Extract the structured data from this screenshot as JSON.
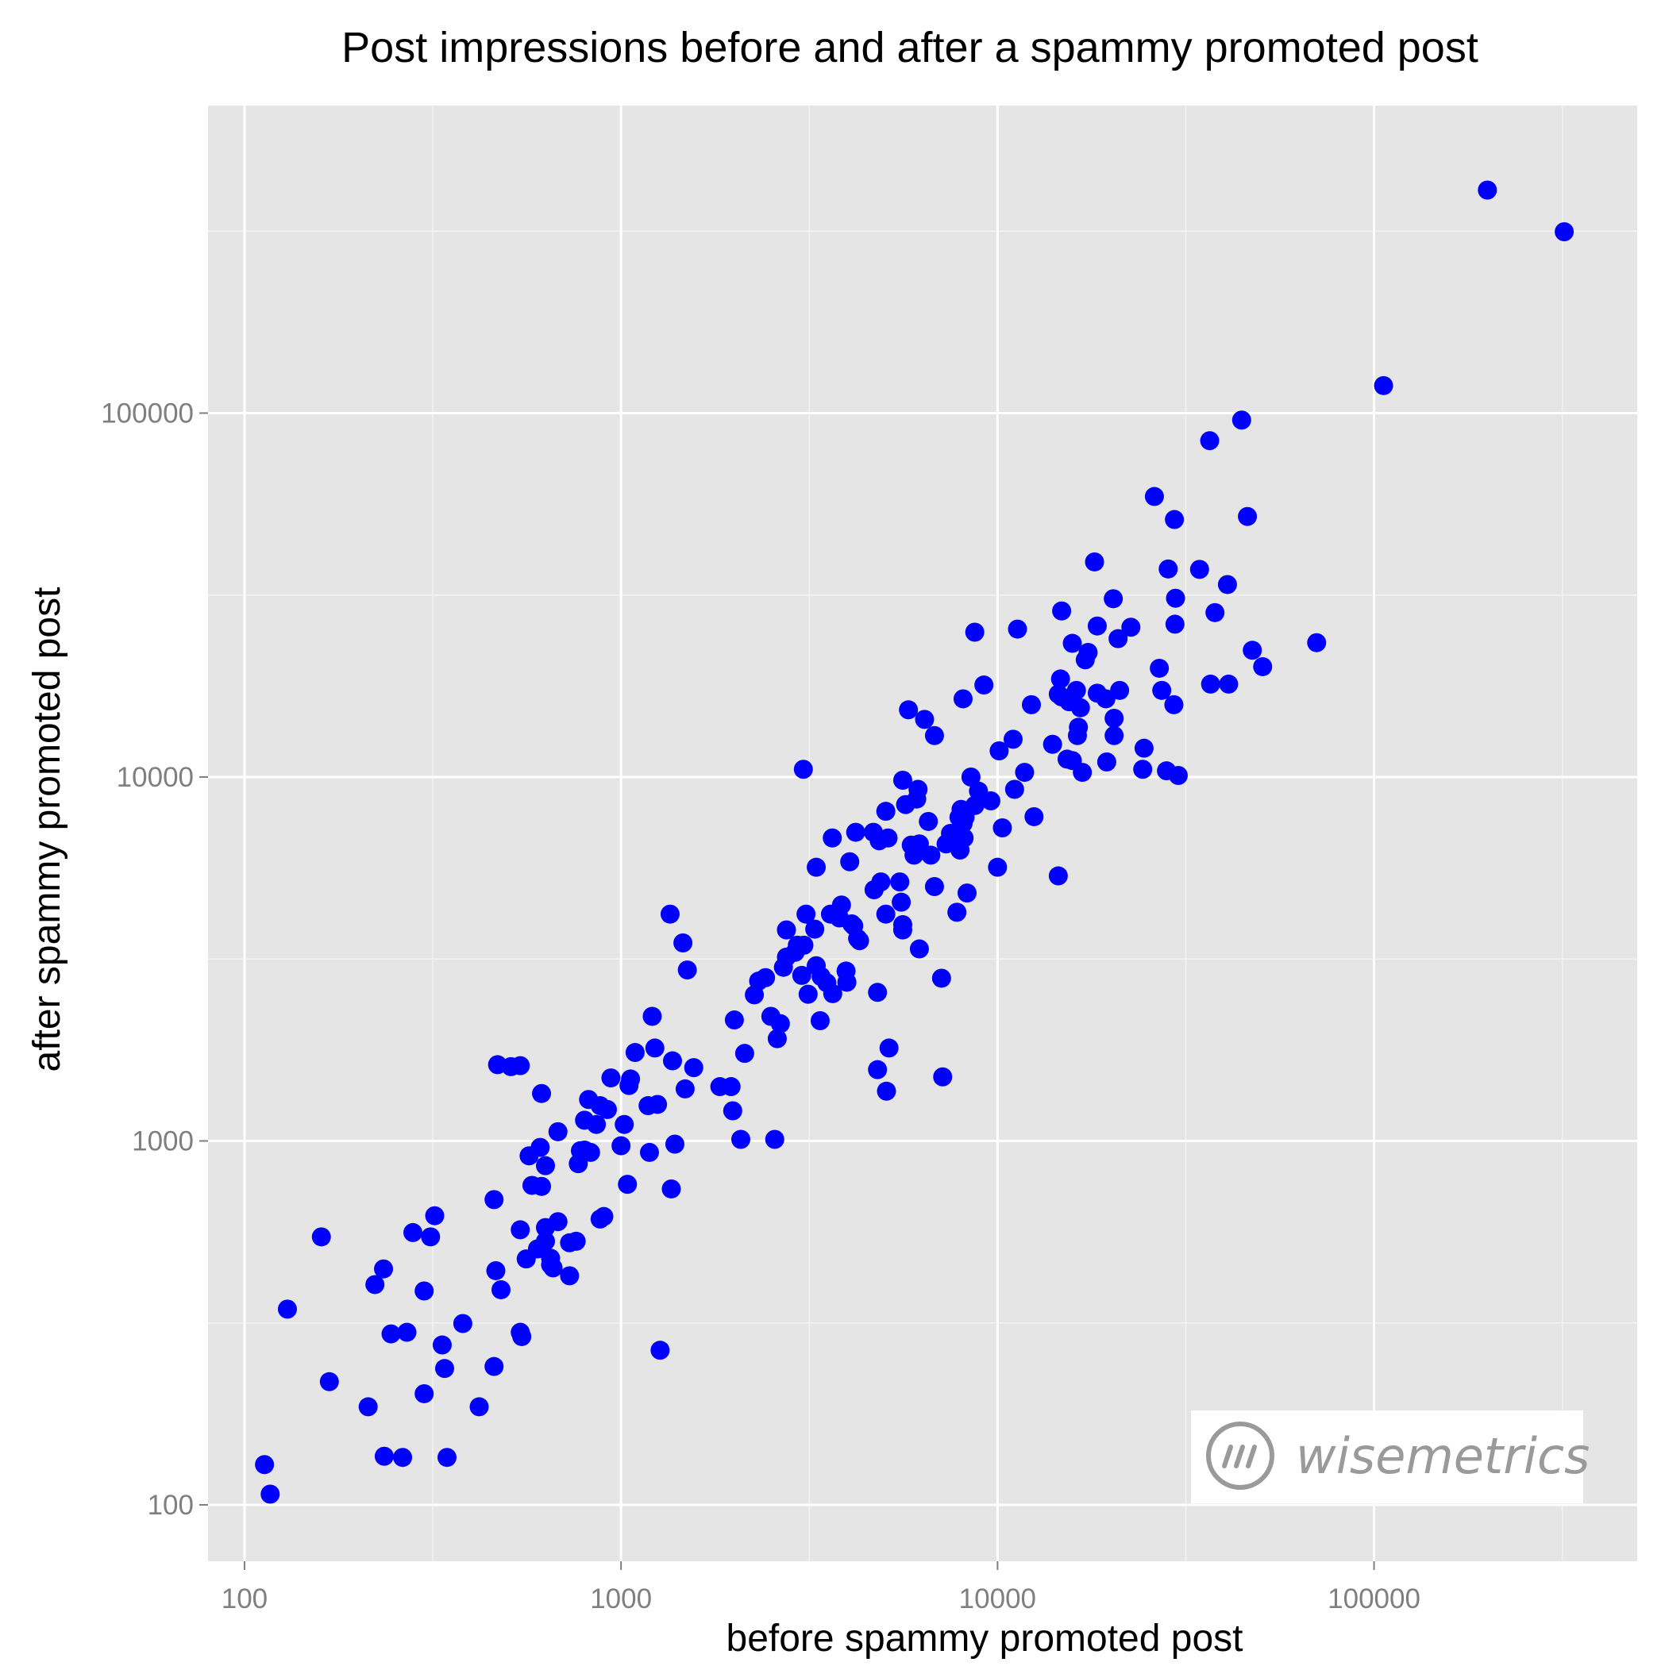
{
  "chart_data": {
    "type": "scatter",
    "title": "Post impressions before and after a spammy promoted post",
    "xlabel": "before spammy promoted post",
    "ylabel": "after spammy promoted post",
    "x_scale": "log10",
    "y_scale": "log10",
    "xlim": [
      80,
      500000
    ],
    "ylim": [
      70,
      700000
    ],
    "x_ticks": [
      "100",
      "1000",
      "10000",
      "100000"
    ],
    "y_ticks": [
      "100",
      "1000",
      "10000",
      "100000"
    ],
    "grid": true,
    "marker_color": "#0000ff",
    "panel_color": "#e5e5e5",
    "watermark": "wisemetrics",
    "points": [
      [
        113,
        129
      ],
      [
        117,
        107
      ],
      [
        130,
        345
      ],
      [
        160,
        545
      ],
      [
        168,
        218
      ],
      [
        213,
        186
      ],
      [
        222,
        403
      ],
      [
        234,
        445
      ],
      [
        235,
        136
      ],
      [
        245,
        295
      ],
      [
        263,
        135
      ],
      [
        270,
        298
      ],
      [
        280,
        560
      ],
      [
        300,
        202
      ],
      [
        300,
        387
      ],
      [
        312,
        545
      ],
      [
        320,
        623
      ],
      [
        335,
        275
      ],
      [
        340,
        237
      ],
      [
        345,
        135
      ],
      [
        380,
        315
      ],
      [
        420,
        186
      ],
      [
        460,
        240
      ],
      [
        460,
        690
      ],
      [
        465,
        440
      ],
      [
        470,
        1620
      ],
      [
        480,
        390
      ],
      [
        510,
        1600
      ],
      [
        540,
        1610
      ],
      [
        540,
        570
      ],
      [
        540,
        298
      ],
      [
        545,
        290
      ],
      [
        560,
        474
      ],
      [
        570,
        910
      ],
      [
        580,
        755
      ],
      [
        600,
        505
      ],
      [
        610,
        960
      ],
      [
        615,
        1350
      ],
      [
        615,
        750
      ],
      [
        630,
        530
      ],
      [
        630,
        578
      ],
      [
        630,
        855
      ],
      [
        650,
        457
      ],
      [
        650,
        476
      ],
      [
        660,
        448
      ],
      [
        680,
        1060
      ],
      [
        680,
        600
      ],
      [
        730,
        426
      ],
      [
        730,
        525
      ],
      [
        760,
        530
      ],
      [
        770,
        866
      ],
      [
        780,
        940
      ],
      [
        800,
        944
      ],
      [
        800,
        1140
      ],
      [
        820,
        1300
      ],
      [
        830,
        930
      ],
      [
        860,
        1110
      ],
      [
        880,
        610
      ],
      [
        880,
        1250
      ],
      [
        900,
        620
      ],
      [
        920,
        1220
      ],
      [
        940,
        1490
      ],
      [
        1000,
        970
      ],
      [
        1020,
        1110
      ],
      [
        1040,
        760
      ],
      [
        1050,
        1420
      ],
      [
        1060,
        1480
      ],
      [
        1090,
        1750
      ],
      [
        1180,
        1250
      ],
      [
        1190,
        930
      ],
      [
        1210,
        2200
      ],
      [
        1230,
        1800
      ],
      [
        1250,
        1260
      ],
      [
        1270,
        266
      ],
      [
        1350,
        4200
      ],
      [
        1360,
        738
      ],
      [
        1370,
        1660
      ],
      [
        1390,
        980
      ],
      [
        1460,
        3500
      ],
      [
        1480,
        1390
      ],
      [
        1500,
        2950
      ],
      [
        1560,
        1590
      ],
      [
        1830,
        1410
      ],
      [
        1960,
        1410
      ],
      [
        1980,
        1210
      ],
      [
        2000,
        2150
      ],
      [
        2080,
        1010
      ],
      [
        2130,
        1740
      ],
      [
        2260,
        2520
      ],
      [
        2320,
        2750
      ],
      [
        2420,
        2810
      ],
      [
        2500,
        2200
      ],
      [
        2560,
        1010
      ],
      [
        2600,
        1910
      ],
      [
        2650,
        2100
      ],
      [
        2700,
        3000
      ],
      [
        2750,
        3200
      ],
      [
        2750,
        3800
      ],
      [
        2900,
        3300
      ],
      [
        2940,
        3450
      ],
      [
        3020,
        2850
      ],
      [
        3050,
        10500
      ],
      [
        3060,
        3450
      ],
      [
        3100,
        4200
      ],
      [
        3140,
        2530
      ],
      [
        3270,
        3820
      ],
      [
        3300,
        3030
      ],
      [
        3300,
        5650
      ],
      [
        3380,
        2140
      ],
      [
        3400,
        2830
      ],
      [
        3520,
        2720
      ],
      [
        3600,
        4200
      ],
      [
        3640,
        6800
      ],
      [
        3650,
        2540
      ],
      [
        3800,
        4100
      ],
      [
        3850,
        4450
      ],
      [
        3960,
        2930
      ],
      [
        3980,
        2730
      ],
      [
        4050,
        5850
      ],
      [
        4100,
        3950
      ],
      [
        4150,
        3900
      ],
      [
        4200,
        7050
      ],
      [
        4250,
        3600
      ],
      [
        4300,
        3550
      ],
      [
        4680,
        7050
      ],
      [
        4700,
        4900
      ],
      [
        4800,
        2560
      ],
      [
        4800,
        1570
      ],
      [
        4850,
        6680
      ],
      [
        4900,
        5150
      ],
      [
        5050,
        8050
      ],
      [
        5050,
        4200
      ],
      [
        5070,
        1370
      ],
      [
        5120,
        6800
      ],
      [
        5150,
        1800
      ],
      [
        5500,
        5150
      ],
      [
        5550,
        4530
      ],
      [
        5600,
        3800
      ],
      [
        5600,
        3930
      ],
      [
        5600,
        9800
      ],
      [
        5700,
        8400
      ],
      [
        5800,
        15300
      ],
      [
        5900,
        6500
      ],
      [
        6000,
        6100
      ],
      [
        6100,
        8700
      ],
      [
        6150,
        9250
      ],
      [
        6200,
        6550
      ],
      [
        6200,
        3370
      ],
      [
        6400,
        14400
      ],
      [
        6550,
        7550
      ],
      [
        6650,
        6100
      ],
      [
        6800,
        5000
      ],
      [
        6800,
        13000
      ],
      [
        7100,
        2800
      ],
      [
        7150,
        1500
      ],
      [
        7300,
        6550
      ],
      [
        7500,
        7000
      ],
      [
        7800,
        4250
      ],
      [
        7900,
        7750
      ],
      [
        7950,
        6300
      ],
      [
        8000,
        8150
      ],
      [
        8100,
        7450
      ],
      [
        8100,
        16400
      ],
      [
        8150,
        6800
      ],
      [
        8200,
        7750
      ],
      [
        8300,
        4800
      ],
      [
        8500,
        10000
      ],
      [
        8700,
        25000
      ],
      [
        8700,
        8350
      ],
      [
        8900,
        9150
      ],
      [
        9200,
        17900
      ],
      [
        9600,
        8600
      ],
      [
        10000,
        5650
      ],
      [
        10100,
        11800
      ],
      [
        10300,
        7250
      ],
      [
        11000,
        12700
      ],
      [
        11100,
        9250
      ],
      [
        11300,
        25500
      ],
      [
        11800,
        10300
      ],
      [
        12300,
        15800
      ],
      [
        12500,
        7780
      ],
      [
        14000,
        12300
      ],
      [
        14500,
        16900
      ],
      [
        14500,
        5350
      ],
      [
        14700,
        18600
      ],
      [
        14800,
        16600
      ],
      [
        14800,
        28600
      ],
      [
        15300,
        11200
      ],
      [
        15500,
        16100
      ],
      [
        15800,
        23300
      ],
      [
        15800,
        11100
      ],
      [
        16200,
        17300
      ],
      [
        16300,
        13000
      ],
      [
        16400,
        13700
      ],
      [
        16600,
        15500
      ],
      [
        16800,
        10300
      ],
      [
        17100,
        21000
      ],
      [
        17400,
        22000
      ],
      [
        18100,
        39000
      ],
      [
        18400,
        26000
      ],
      [
        18400,
        17000
      ],
      [
        19400,
        16400
      ],
      [
        19500,
        11000
      ],
      [
        20300,
        30900
      ],
      [
        20400,
        14500
      ],
      [
        20400,
        13000
      ],
      [
        20900,
        24000
      ],
      [
        21100,
        17300
      ],
      [
        22600,
        25800
      ],
      [
        24300,
        10500
      ],
      [
        24500,
        12000
      ],
      [
        26100,
        59000
      ],
      [
        26900,
        19900
      ],
      [
        27300,
        17300
      ],
      [
        28100,
        10400
      ],
      [
        28400,
        37300
      ],
      [
        29400,
        15800
      ],
      [
        29500,
        51000
      ],
      [
        29600,
        26300
      ],
      [
        29700,
        31000
      ],
      [
        30200,
        10100
      ],
      [
        34400,
        37200
      ],
      [
        36600,
        84000
      ],
      [
        36800,
        18000
      ],
      [
        37800,
        28300
      ],
      [
        40800,
        33800
      ],
      [
        41100,
        18000
      ],
      [
        44500,
        95700
      ],
      [
        46100,
        52000
      ],
      [
        47500,
        22300
      ],
      [
        50600,
        20100
      ],
      [
        70400,
        23400
      ],
      [
        106000,
        119000
      ],
      [
        200000,
        410000
      ],
      [
        320000,
        315000
      ]
    ]
  }
}
